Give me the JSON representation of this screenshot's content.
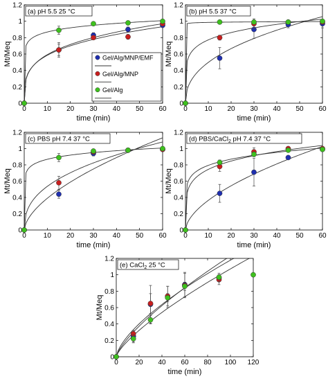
{
  "colors": {
    "gel_alg_mnp_emf": "#1f2fb0",
    "gel_alg_mnp": "#c81e1e",
    "gel_alg": "#3ec01e",
    "fit_line": "#333333"
  },
  "chart_data": [
    {
      "type": "scatter",
      "title": "(a) pH 5.5 25 °C",
      "xlabel": "time (min)",
      "ylabel": "Mt/Meq",
      "xlim": [
        0,
        60
      ],
      "ylim": [
        0,
        1.2
      ],
      "xticks": [
        0,
        10,
        20,
        30,
        40,
        50,
        60
      ],
      "yticks": [
        0,
        0.2,
        0.4,
        0.6,
        0.8,
        1,
        1.2
      ],
      "legend": [
        "Gel/Alg/MNP/EMF",
        "Gel/Alg/MNP",
        "Gel/Alg"
      ],
      "legend_position": "right",
      "series": [
        {
          "name": "Gel/Alg/MNP/EMF",
          "x": [
            0,
            15,
            30,
            45,
            60
          ],
          "y": [
            0,
            0.65,
            0.83,
            0.9,
            0.95
          ],
          "err": [
            0,
            0.07,
            0.03,
            0.03,
            0.02
          ]
        },
        {
          "name": "Gel/Alg/MNP",
          "x": [
            0,
            15,
            30,
            45,
            60
          ],
          "y": [
            0,
            0.65,
            0.8,
            0.81,
            0.97
          ],
          "err": [
            0,
            0.09,
            0.02,
            0.03,
            0.02
          ]
        },
        {
          "name": "Gel/Alg",
          "x": [
            0,
            15,
            30,
            45,
            60
          ],
          "y": [
            0,
            0.89,
            0.97,
            0.98,
            1.0
          ],
          "err": [
            0,
            0.05,
            0.01,
            0.01,
            0.01
          ]
        }
      ]
    },
    {
      "type": "scatter",
      "title": "(b) pH 5.5 37 °C",
      "xlabel": "time (min)",
      "ylabel": "Mt/Meq",
      "xlim": [
        0,
        60
      ],
      "ylim": [
        0,
        1.2
      ],
      "xticks": [
        0,
        10,
        20,
        30,
        40,
        50,
        60
      ],
      "yticks": [
        0,
        0.2,
        0.4,
        0.6,
        0.8,
        1,
        1.2
      ],
      "series": [
        {
          "name": "Gel/Alg/MNP/EMF",
          "x": [
            0,
            15,
            30,
            45,
            60
          ],
          "y": [
            0,
            0.55,
            0.9,
            0.96,
            0.97
          ],
          "err": [
            0,
            0.13,
            0.11,
            0.04,
            0.05
          ]
        },
        {
          "name": "Gel/Alg/MNP",
          "x": [
            0,
            15,
            30,
            45,
            60
          ],
          "y": [
            0,
            0.8,
            0.97,
            0.99,
            0.99
          ],
          "err": [
            0,
            0.03,
            0.06,
            0.02,
            0.02
          ]
        },
        {
          "name": "Gel/Alg",
          "x": [
            0,
            15,
            30,
            45,
            60
          ],
          "y": [
            0,
            0.99,
            0.99,
            0.99,
            1.0
          ],
          "err": [
            0,
            0.01,
            0.01,
            0.01,
            0.01
          ]
        }
      ]
    },
    {
      "type": "scatter",
      "title": "(c) PBS pH 7.4 37 °C",
      "xlabel": "time (min)",
      "ylabel": "Mt/Meq",
      "xlim": [
        0,
        60
      ],
      "ylim": [
        0,
        1.2
      ],
      "xticks": [
        0,
        10,
        20,
        30,
        40,
        50,
        60
      ],
      "yticks": [
        0,
        0.2,
        0.4,
        0.6,
        0.8,
        1,
        1.2
      ],
      "series": [
        {
          "name": "Gel/Alg/MNP/EMF",
          "x": [
            0,
            15,
            30,
            45,
            60
          ],
          "y": [
            0,
            0.44,
            0.94,
            0.98,
            0.99
          ],
          "err": [
            0,
            0.05,
            0.03,
            0.02,
            0.02
          ]
        },
        {
          "name": "Gel/Alg/MNP",
          "x": [
            0,
            15,
            30,
            45,
            60
          ],
          "y": [
            0,
            0.58,
            0.96,
            0.98,
            0.99
          ],
          "err": [
            0,
            0.08,
            0.03,
            0.02,
            0.02
          ]
        },
        {
          "name": "Gel/Alg",
          "x": [
            0,
            15,
            30,
            45,
            60
          ],
          "y": [
            0,
            0.89,
            0.97,
            0.98,
            1.0
          ],
          "err": [
            0,
            0.05,
            0.02,
            0.01,
            0.01
          ]
        }
      ]
    },
    {
      "type": "scatter",
      "title": "(d) PBS/CaCl",
      "title_subscript": "2",
      "title_suffix": " pH 7.4 37 °C",
      "xlabel": "time (min)",
      "ylabel": "Mt/Meq",
      "xlim": [
        0,
        60
      ],
      "ylim": [
        0,
        1.2
      ],
      "xticks": [
        0,
        10,
        20,
        30,
        40,
        50,
        60
      ],
      "yticks": [
        0,
        0.2,
        0.4,
        0.6,
        0.8,
        1,
        1.2
      ],
      "series": [
        {
          "name": "Gel/Alg/MNP/EMF",
          "x": [
            0,
            15,
            30,
            45,
            60
          ],
          "y": [
            0,
            0.45,
            0.71,
            0.89,
            0.99
          ],
          "err": [
            0,
            0.11,
            0.17,
            0.02,
            0.02
          ]
        },
        {
          "name": "Gel/Alg/MNP",
          "x": [
            0,
            15,
            30,
            45,
            60
          ],
          "y": [
            0,
            0.78,
            0.96,
            1.0,
            1.0
          ],
          "err": [
            0,
            0.06,
            0.05,
            0.02,
            0.02
          ]
        },
        {
          "name": "Gel/Alg",
          "x": [
            0,
            15,
            30,
            45,
            60
          ],
          "y": [
            0,
            0.83,
            0.93,
            0.98,
            0.99
          ],
          "err": [
            0,
            0.03,
            0.03,
            0.02,
            0.02
          ]
        }
      ]
    },
    {
      "type": "scatter",
      "title": "(e) CaCl",
      "title_subscript": "2",
      "title_suffix": " 25 °C",
      "xlabel": "time (min)",
      "ylabel": "Mt/Meq",
      "xlim": [
        0,
        120
      ],
      "ylim": [
        0,
        1.2
      ],
      "xticks": [
        0,
        20,
        40,
        60,
        80,
        100,
        120
      ],
      "yticks": [
        0,
        0.2,
        0.4,
        0.6,
        0.8,
        1,
        1.2
      ],
      "series": [
        {
          "name": "Gel/Alg/MNP/EMF",
          "x": [
            0,
            15,
            30,
            45,
            60,
            90
          ],
          "y": [
            0,
            0.25,
            0.64,
            0.73,
            0.88,
            0.96
          ],
          "err": [
            0,
            0.07,
            0.23,
            0.13,
            0.15,
            0.04
          ]
        },
        {
          "name": "Gel/Alg/MNP",
          "x": [
            0,
            15,
            30,
            45,
            60,
            90
          ],
          "y": [
            0,
            0.28,
            0.65,
            0.74,
            0.87,
            0.94
          ],
          "err": [
            0,
            0.04,
            0.12,
            0.12,
            0.15,
            0.06
          ]
        },
        {
          "name": "Gel/Alg",
          "x": [
            0,
            15,
            30,
            45,
            60,
            90,
            120
          ],
          "y": [
            0,
            0.22,
            0.45,
            0.72,
            0.86,
            0.97,
            1.0
          ],
          "err": [
            0,
            0.05,
            0.05,
            0.05,
            0.05,
            0.05,
            0.01
          ]
        }
      ]
    }
  ]
}
